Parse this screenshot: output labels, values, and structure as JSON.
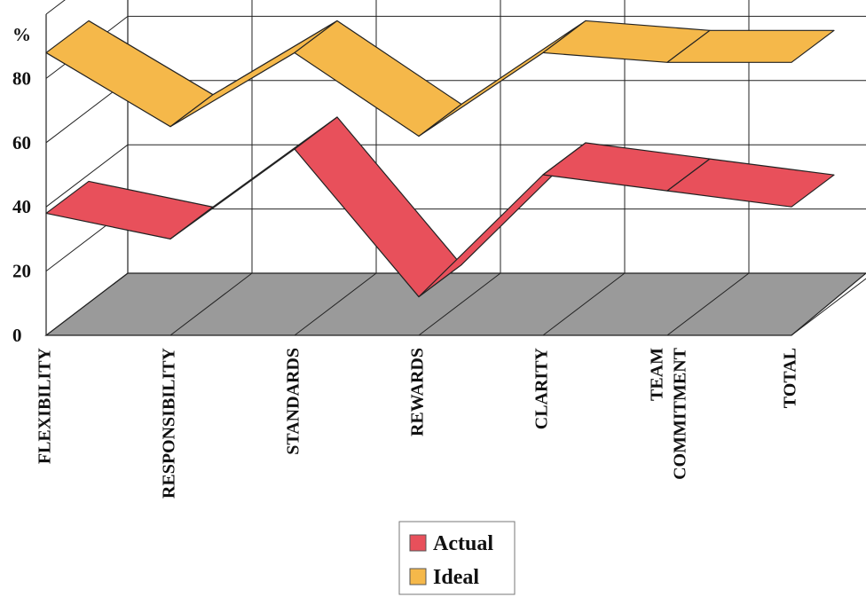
{
  "chart_data": {
    "type": "line",
    "style": "3d-ribbon",
    "title": "",
    "xlabel": "",
    "ylabel": "%",
    "ylim": [
      0,
      100
    ],
    "yticks": [
      "0",
      "20",
      "40",
      "60",
      "80"
    ],
    "grid": true,
    "legend_position": "bottom-center",
    "categories": [
      [
        "FLEXIBILITY"
      ],
      [
        "RESPONSIBILITY"
      ],
      [
        "STANDARDS"
      ],
      [
        "REWARDS"
      ],
      [
        "CLARITY"
      ],
      [
        "TEAM",
        "COMMITMENT"
      ],
      [
        "TOTAL"
      ]
    ],
    "series": [
      {
        "name": "Actual",
        "color": "#e8505b",
        "values": [
          38,
          30,
          58,
          12,
          50,
          45,
          40
        ]
      },
      {
        "name": "Ideal",
        "color": "#f5b84a",
        "values": [
          88,
          65,
          88,
          62,
          88,
          85,
          85
        ]
      }
    ],
    "floor_color": "#9a9a9a"
  }
}
